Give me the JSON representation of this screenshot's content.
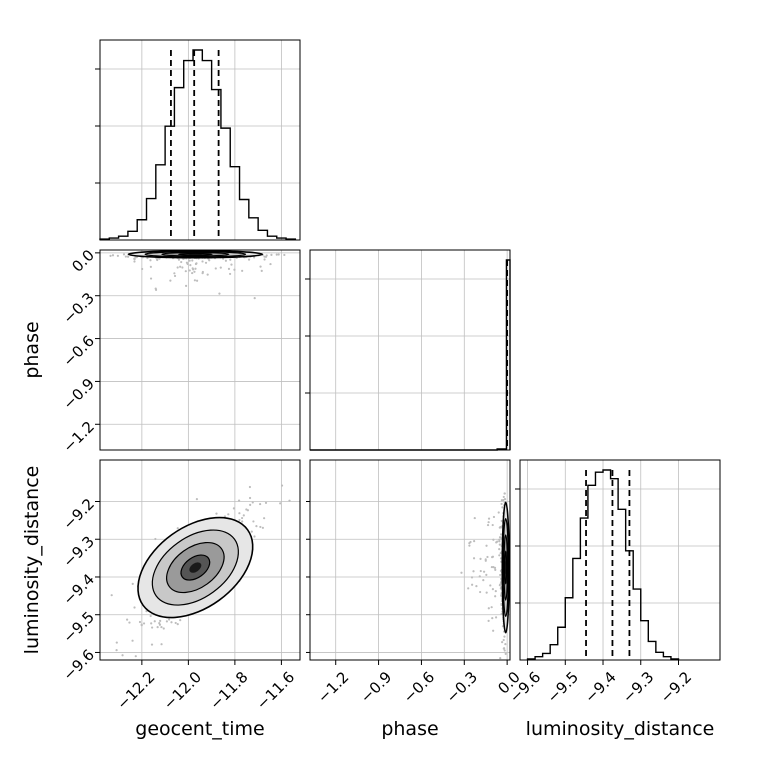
{
  "chart_data": {
    "type": "corner",
    "parameters": [
      "geocent_time",
      "phase",
      "luminosity_distance"
    ],
    "hist_color": "#000000",
    "grid": true,
    "panels": [
      {
        "kind": "histogram",
        "parameter": "geocent_time",
        "xlim": [
          -12.38,
          -11.52
        ],
        "bins": [
          {
            "x0": -12.38,
            "x1": -12.34,
            "count": 1
          },
          {
            "x0": -12.34,
            "x1": -12.3,
            "count": 2
          },
          {
            "x0": -12.3,
            "x1": -12.26,
            "count": 4
          },
          {
            "x0": -12.26,
            "x1": -12.22,
            "count": 9
          },
          {
            "x0": -12.22,
            "x1": -12.18,
            "count": 21
          },
          {
            "x0": -12.18,
            "x1": -12.14,
            "count": 43
          },
          {
            "x0": -12.14,
            "x1": -12.1,
            "count": 78
          },
          {
            "x0": -12.1,
            "x1": -12.06,
            "count": 118
          },
          {
            "x0": -12.06,
            "x1": -12.02,
            "count": 158
          },
          {
            "x0": -12.02,
            "x1": -11.98,
            "count": 186
          },
          {
            "x0": -11.98,
            "x1": -11.94,
            "count": 197
          },
          {
            "x0": -11.94,
            "x1": -11.9,
            "count": 186
          },
          {
            "x0": -11.9,
            "x1": -11.86,
            "count": 156
          },
          {
            "x0": -11.86,
            "x1": -11.82,
            "count": 116
          },
          {
            "x0": -11.82,
            "x1": -11.78,
            "count": 76
          },
          {
            "x0": -11.78,
            "x1": -11.74,
            "count": 42
          },
          {
            "x0": -11.74,
            "x1": -11.7,
            "count": 23
          },
          {
            "x0": -11.7,
            "x1": -11.66,
            "count": 10
          },
          {
            "x0": -11.66,
            "x1": -11.62,
            "count": 4
          },
          {
            "x0": -11.62,
            "x1": -11.58,
            "count": 2
          },
          {
            "x0": -11.58,
            "x1": -11.54,
            "count": 1
          }
        ],
        "quantiles": [
          -12.075,
          -11.975,
          -11.87
        ]
      },
      {
        "kind": "2d",
        "x": "geocent_time",
        "y": "phase",
        "xlim": [
          -12.38,
          -11.52
        ],
        "ylim": [
          -1.38,
          0.02
        ],
        "yticks": [
          "0.0",
          "−0.3",
          "−0.6",
          "−0.9",
          "−1.2"
        ],
        "yticks_values": [
          0,
          -0.3,
          -0.6,
          -0.9,
          -1.2
        ],
        "density_center": {
          "x": -11.97,
          "y": -0.01
        },
        "density_spread": {
          "x": 0.12,
          "y": 0.01
        }
      },
      {
        "kind": "histogram",
        "parameter": "phase",
        "xlim": [
          -1.38,
          0.02
        ],
        "bins": [
          {
            "x0": -1.38,
            "x1": -0.07,
            "count": 0
          },
          {
            "x0": -0.07,
            "x1": -0.005,
            "count": 1
          },
          {
            "x0": -0.005,
            "x1": 0.02,
            "count": 180
          }
        ],
        "quantiles": [
          0.0
        ]
      },
      {
        "kind": "2d",
        "x": "geocent_time",
        "y": "luminosity_distance",
        "xlim": [
          -12.38,
          -11.52
        ],
        "ylim": [
          -9.62,
          -9.09
        ],
        "yticks": [
          "−9.2",
          "−9.3",
          "−9.4",
          "−9.5",
          "−9.6"
        ],
        "yticks_values": [
          -9.2,
          -9.3,
          -9.4,
          -9.5,
          -9.6
        ],
        "density_center": {
          "x": -11.97,
          "y": -9.375
        },
        "density_spread": {
          "x": 0.11,
          "y": 0.072
        },
        "correlation": 0.68
      },
      {
        "kind": "2d",
        "x": "phase",
        "y": "luminosity_distance",
        "xlim": [
          -1.38,
          0.02
        ],
        "ylim": [
          -9.62,
          -9.09
        ],
        "density_center": {
          "x": -0.01,
          "y": -9.375
        },
        "density_spread": {
          "x": 0.01,
          "y": 0.072
        }
      },
      {
        "kind": "histogram",
        "parameter": "luminosity_distance",
        "xlim": [
          -9.62,
          -9.09
        ],
        "bins": [
          {
            "x0": -9.6,
            "x1": -9.58,
            "count": 1
          },
          {
            "x0": -9.58,
            "x1": -9.56,
            "count": 3
          },
          {
            "x0": -9.56,
            "x1": -9.54,
            "count": 6
          },
          {
            "x0": -9.54,
            "x1": -9.52,
            "count": 14
          },
          {
            "x0": -9.52,
            "x1": -9.5,
            "count": 30
          },
          {
            "x0": -9.5,
            "x1": -9.48,
            "count": 57
          },
          {
            "x0": -9.48,
            "x1": -9.46,
            "count": 93
          },
          {
            "x0": -9.46,
            "x1": -9.44,
            "count": 130
          },
          {
            "x0": -9.44,
            "x1": -9.42,
            "count": 160
          },
          {
            "x0": -9.42,
            "x1": -9.4,
            "count": 172
          },
          {
            "x0": -9.4,
            "x1": -9.38,
            "count": 174
          },
          {
            "x0": -9.38,
            "x1": -9.36,
            "count": 166
          },
          {
            "x0": -9.36,
            "x1": -9.34,
            "count": 138
          },
          {
            "x0": -9.34,
            "x1": -9.32,
            "count": 100
          },
          {
            "x0": -9.32,
            "x1": -9.3,
            "count": 65
          },
          {
            "x0": -9.3,
            "x1": -9.28,
            "count": 36
          },
          {
            "x0": -9.28,
            "x1": -9.26,
            "count": 17
          },
          {
            "x0": -9.26,
            "x1": -9.24,
            "count": 7
          },
          {
            "x0": -9.24,
            "x1": -9.22,
            "count": 3
          },
          {
            "x0": -9.22,
            "x1": -9.2,
            "count": 1
          }
        ],
        "quantiles": [
          -9.445,
          -9.375,
          -9.33
        ]
      }
    ],
    "x_axes": [
      {
        "label": "geocent_time",
        "ticks": [
          "−12.2",
          "−12.0",
          "−11.8",
          "−11.6"
        ],
        "values": [
          -12.2,
          -12.0,
          -11.8,
          -11.6
        ]
      },
      {
        "label": "phase",
        "ticks": [
          "−1.2",
          "−0.9",
          "−0.6",
          "−0.3",
          "0.0"
        ],
        "values": [
          -1.2,
          -0.9,
          -0.6,
          -0.3,
          0.0
        ]
      },
      {
        "label": "luminosity_distance",
        "ticks": [
          "−9.6",
          "−9.5",
          "−9.4",
          "−9.3",
          "−9.2"
        ],
        "values": [
          -9.6,
          -9.5,
          -9.4,
          -9.3,
          -9.2
        ]
      }
    ],
    "y_axes": [
      {
        "label": "phase"
      },
      {
        "label": "luminosity_distance"
      }
    ]
  }
}
